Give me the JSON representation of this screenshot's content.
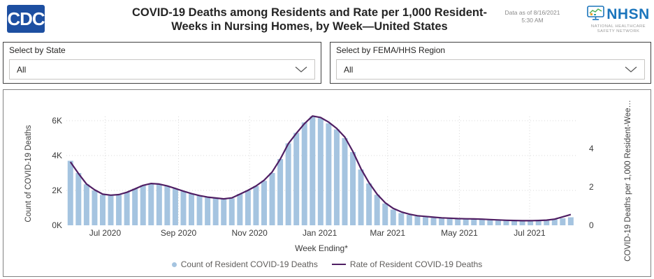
{
  "header": {
    "cdc_logo_text": "CDC",
    "title_line1": "COVID-19 Deaths among Residents and Rate per 1,000 Resident-",
    "title_line2": "Weeks in Nursing Homes, by Week—United States",
    "data_as_of_line1": "Data as of 8/16/2021",
    "data_as_of_line2": "5:30 AM",
    "nhsn_acronym": "NHSN",
    "nhsn_subtitle_line1": "NATIONAL HEALTHCARE",
    "nhsn_subtitle_line2": "SAFETY NETWORK"
  },
  "filters": {
    "state": {
      "label": "Select by State",
      "value": "All"
    },
    "region": {
      "label": "Select by FEMA/HHS Region",
      "value": "All"
    }
  },
  "colors": {
    "bar": "#a5c4e0",
    "line": "#4f1e63",
    "cdc_blue": "#1d4fa1",
    "nhsn_blue": "#1B75BC",
    "gridline": "#d9d9d9"
  },
  "chart_data": {
    "type": "combo-bar-line",
    "x_unit": "week",
    "x_axis_label": "Week Ending*",
    "grid": "dotted",
    "legend_position": "bottom",
    "left_axis": {
      "title": "Count of COVID-19 Deaths",
      "range": [
        0,
        7300
      ],
      "ticks": [
        {
          "value": 0,
          "label": "0K"
        },
        {
          "value": 2000,
          "label": "2K"
        },
        {
          "value": 4000,
          "label": "4K"
        },
        {
          "value": 6000,
          "label": "6K"
        }
      ]
    },
    "right_axis": {
      "title": "COVID-19 Deaths per 1,000 Resident-Wee…",
      "range": [
        0,
        6.6
      ],
      "ticks": [
        {
          "value": 0,
          "label": "0"
        },
        {
          "value": 2,
          "label": "2"
        },
        {
          "value": 4,
          "label": "4"
        }
      ]
    },
    "x_ticks": [
      {
        "week_pos": 5.3,
        "label": "Jul 2020"
      },
      {
        "week_pos": 14.4,
        "label": "Sep 2020"
      },
      {
        "week_pos": 23.2,
        "label": "Nov 2020"
      },
      {
        "week_pos": 31.9,
        "label": "Jan 2021"
      },
      {
        "week_pos": 40.3,
        "label": "Mar 2021"
      },
      {
        "week_pos": 49.2,
        "label": "May 2021"
      },
      {
        "week_pos": 57.9,
        "label": "Jul 2021"
      }
    ],
    "series": [
      {
        "name": "Count of Resident COVID-19 Deaths",
        "type": "bar",
        "axis": "left",
        "color": "#a5c4e0",
        "values": [
          3700,
          3000,
          2350,
          2000,
          1750,
          1700,
          1750,
          1900,
          2100,
          2300,
          2400,
          2350,
          2250,
          2100,
          1950,
          1800,
          1700,
          1600,
          1550,
          1500,
          1550,
          1800,
          2000,
          2250,
          2550,
          3000,
          3800,
          4700,
          5300,
          5900,
          6250,
          6150,
          5850,
          5500,
          5000,
          4200,
          3200,
          2400,
          1750,
          1250,
          900,
          700,
          600,
          520,
          470,
          430,
          400,
          380,
          360,
          350,
          340,
          330,
          320,
          300,
          290,
          280,
          280,
          280,
          290,
          310,
          340,
          400,
          460
        ]
      },
      {
        "name": "Rate of Resident COVID-19 Deaths",
        "type": "line",
        "axis": "right",
        "color": "#4f1e63",
        "values": [
          3.3,
          2.7,
          2.15,
          1.85,
          1.62,
          1.57,
          1.6,
          1.72,
          1.9,
          2.08,
          2.18,
          2.15,
          2.05,
          1.92,
          1.78,
          1.65,
          1.55,
          1.47,
          1.42,
          1.38,
          1.43,
          1.62,
          1.82,
          2.05,
          2.35,
          2.78,
          3.45,
          4.25,
          4.8,
          5.3,
          5.7,
          5.62,
          5.38,
          5.05,
          4.6,
          3.85,
          2.95,
          2.22,
          1.62,
          1.18,
          0.88,
          0.7,
          0.58,
          0.5,
          0.46,
          0.42,
          0.39,
          0.37,
          0.35,
          0.34,
          0.33,
          0.32,
          0.3,
          0.28,
          0.26,
          0.25,
          0.24,
          0.24,
          0.25,
          0.27,
          0.32,
          0.44,
          0.56
        ]
      }
    ]
  }
}
